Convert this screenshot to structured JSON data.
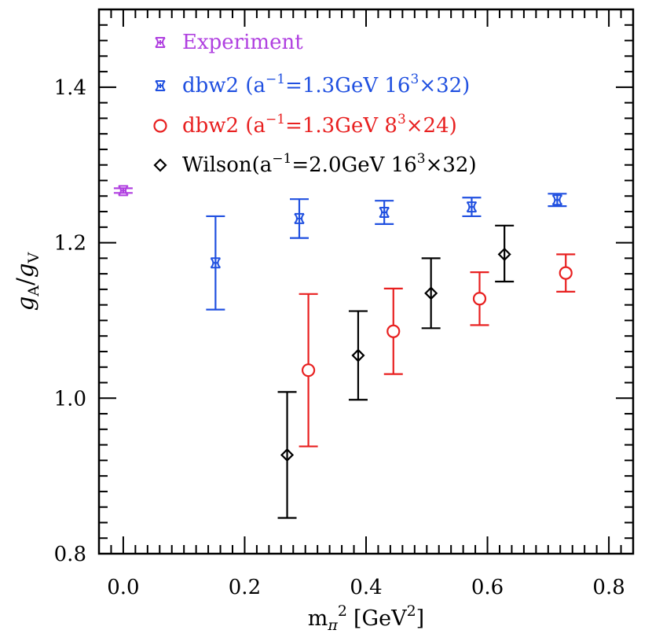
{
  "chart_data": {
    "type": "scatter",
    "x_range": [
      -0.04,
      0.84
    ],
    "y_range": [
      0.8,
      1.5
    ],
    "x_ticks": [
      0.0,
      0.2,
      0.4,
      0.6,
      0.8
    ],
    "y_ticks": [
      0.8,
      1.0,
      1.2,
      1.4
    ],
    "x_tick_labels": [
      "0.0",
      "0.2",
      "0.4",
      "0.6",
      "0.8"
    ],
    "y_tick_labels": [
      "0.8",
      "1.0",
      "1.2",
      "1.4"
    ],
    "xlabel": {
      "base": "m",
      "sub": "π",
      "sup": "2",
      "bracket_open": "[GeV",
      "bracket_sup": "2",
      "bracket_close": "]"
    },
    "ylabel": {
      "g1": "g",
      "sub1": "A",
      "slash": "/",
      "g2": "g",
      "sub2": "V"
    },
    "legend_position": "top-left",
    "series": [
      {
        "name": "Experiment",
        "color": "#b040e0",
        "marker": "star",
        "legend": {
          "label": "Experiment"
        },
        "points": [
          {
            "x": 0.0,
            "y": 1.267,
            "lo": 1.264,
            "hi": 1.27
          }
        ]
      },
      {
        "name": "dbw2 (a^-1=1.3GeV 16^3x32)",
        "color": "#2050e0",
        "marker": "star",
        "legend": {
          "prefix": "dbw2  (a",
          "sup1": "−1",
          "mid": "=1.3GeV 16",
          "sup2": "3",
          "suffix": "×32)"
        },
        "points": [
          {
            "x": 0.152,
            "y": 1.174,
            "lo": 1.114,
            "hi": 1.234
          },
          {
            "x": 0.29,
            "y": 1.231,
            "lo": 1.206,
            "hi": 1.256
          },
          {
            "x": 0.43,
            "y": 1.239,
            "lo": 1.224,
            "hi": 1.254
          },
          {
            "x": 0.574,
            "y": 1.246,
            "lo": 1.234,
            "hi": 1.258
          },
          {
            "x": 0.715,
            "y": 1.255,
            "lo": 1.247,
            "hi": 1.263
          }
        ]
      },
      {
        "name": "dbw2 (a^-1=1.3GeV 8^3x24)",
        "color": "#e82020",
        "marker": "circle",
        "legend": {
          "prefix": "dbw2  (a",
          "sup1": "−1",
          "mid": "=1.3GeV  8",
          "sup2": "3",
          "suffix": "×24)"
        },
        "points": [
          {
            "x": 0.305,
            "y": 1.036,
            "lo": 0.938,
            "hi": 1.134
          },
          {
            "x": 0.445,
            "y": 1.086,
            "lo": 1.031,
            "hi": 1.141
          },
          {
            "x": 0.587,
            "y": 1.128,
            "lo": 1.094,
            "hi": 1.162
          },
          {
            "x": 0.729,
            "y": 1.161,
            "lo": 1.137,
            "hi": 1.185
          }
        ]
      },
      {
        "name": "Wilson(a^-1=2.0GeV 16^3x32)",
        "color": "#000000",
        "marker": "diamond",
        "legend": {
          "prefix": "Wilson(a",
          "sup1": "−1",
          "mid": "=2.0GeV 16",
          "sup2": "3",
          "suffix": "×32)"
        },
        "points": [
          {
            "x": 0.27,
            "y": 0.927,
            "lo": 0.846,
            "hi": 1.008
          },
          {
            "x": 0.387,
            "y": 1.055,
            "lo": 0.998,
            "hi": 1.112
          },
          {
            "x": 0.507,
            "y": 1.135,
            "lo": 1.09,
            "hi": 1.18
          },
          {
            "x": 0.628,
            "y": 1.185,
            "lo": 1.15,
            "hi": 1.222
          }
        ]
      }
    ]
  }
}
